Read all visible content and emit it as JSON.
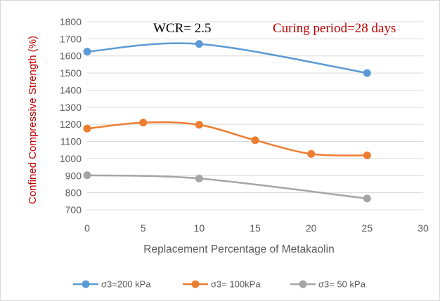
{
  "chart_data": {
    "type": "line",
    "xlabel": "Replacement Percentage of Metakaolin",
    "ylabel": "Confined Compressive Strength (%)",
    "xlim": [
      0,
      30
    ],
    "ylim": [
      700,
      1800
    ],
    "x_ticks": [
      "0",
      "5",
      "10",
      "15",
      "20",
      "25",
      "30"
    ],
    "y_ticks": [
      "700",
      "800",
      "900",
      "1000",
      "1100",
      "1200",
      "1300",
      "1400",
      "1500",
      "1600",
      "1700",
      "1800"
    ],
    "grid": "horizontal",
    "legend_position": "bottom",
    "annotations": [
      {
        "text": "WCR= 2.5",
        "color": "#000000"
      },
      {
        "text": "Curing period=28 days",
        "color": "#c00000"
      }
    ],
    "series": [
      {
        "name": "σ3=200 kPa",
        "color": "#5b9bd5",
        "x": [
          0,
          10,
          25
        ],
        "y": [
          1625,
          1670,
          1500
        ]
      },
      {
        "name": "σ3= 100kPa",
        "color": "#ed7d31",
        "x": [
          0,
          5,
          10,
          15,
          20,
          25
        ],
        "y": [
          1175,
          1210,
          1197,
          1107,
          1027,
          1018
        ]
      },
      {
        "name": "σ3= 50 kPa",
        "color": "#a5a5a5",
        "x": [
          0,
          10,
          25
        ],
        "y": [
          902,
          883,
          766
        ]
      }
    ]
  }
}
